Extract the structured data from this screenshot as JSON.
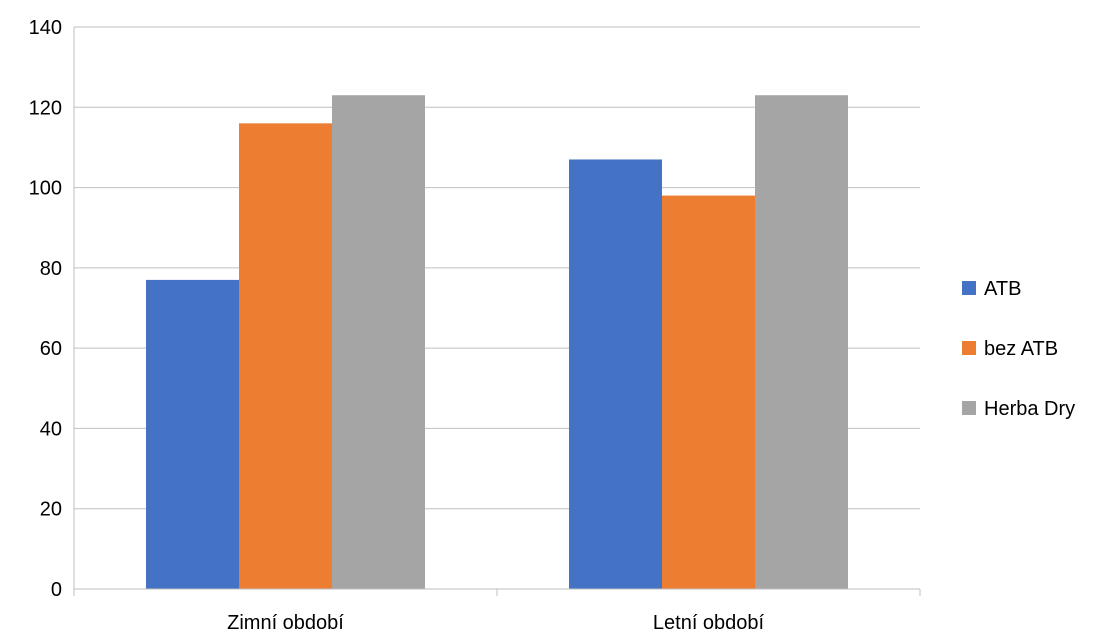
{
  "chart_data": {
    "type": "bar",
    "title": "",
    "xlabel": "",
    "ylabel": "",
    "categories": [
      "Zimní období",
      "Letní období"
    ],
    "series": [
      {
        "name": "ATB",
        "color": "#4472C4",
        "values": [
          77,
          107
        ]
      },
      {
        "name": "bez ATB",
        "color": "#ED7D31",
        "values": [
          116,
          98
        ]
      },
      {
        "name": "Herba Dry",
        "color": "#A5A5A5",
        "values": [
          123,
          123
        ]
      }
    ],
    "ylim": [
      0,
      140
    ],
    "yticks": [
      0,
      20,
      40,
      60,
      80,
      100,
      120,
      140
    ],
    "grid": true,
    "legend_position": "right"
  }
}
